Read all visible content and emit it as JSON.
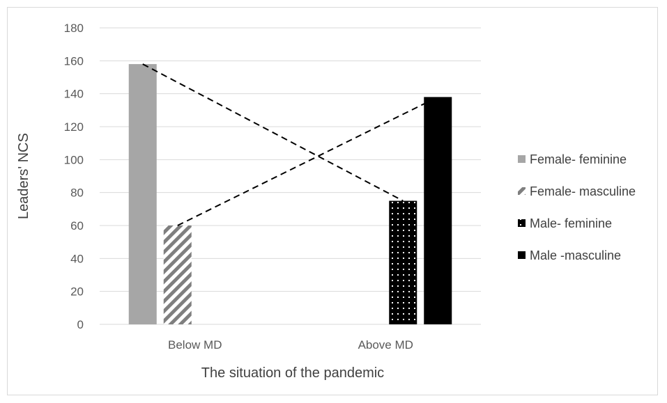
{
  "chart_data": {
    "type": "bar",
    "categories": [
      "Below  MD",
      "Above MD"
    ],
    "series": [
      {
        "name": "Female- feminine",
        "values": [
          158,
          null
        ],
        "color": "#a6a6a6",
        "pattern": "solid-gray"
      },
      {
        "name": "Female- masculine",
        "values": [
          60,
          null
        ],
        "color": "#7f7f7f",
        "pattern": "diagonal-stripes"
      },
      {
        "name": "Male- feminine",
        "values": [
          null,
          75
        ],
        "color": "#000000",
        "pattern": "dots"
      },
      {
        "name": "Male -masculine",
        "values": [
          null,
          138
        ],
        "color": "#000000",
        "pattern": "solid-black"
      }
    ],
    "lines": [
      {
        "style": "dashed",
        "from": {
          "category": "Below  MD",
          "value": 158
        },
        "to": {
          "category": "Above MD",
          "value": 75
        }
      },
      {
        "style": "dashed",
        "from": {
          "category": "Below  MD",
          "value": 60
        },
        "to": {
          "category": "Above MD",
          "value": 138
        }
      }
    ],
    "ylim": [
      0,
      180
    ],
    "yticks": [
      0,
      20,
      40,
      60,
      80,
      100,
      120,
      140,
      160,
      180
    ],
    "xlabel": "The situation of the pandemic",
    "ylabel": "Leaders' NCS",
    "grid": true,
    "legend": "right"
  }
}
